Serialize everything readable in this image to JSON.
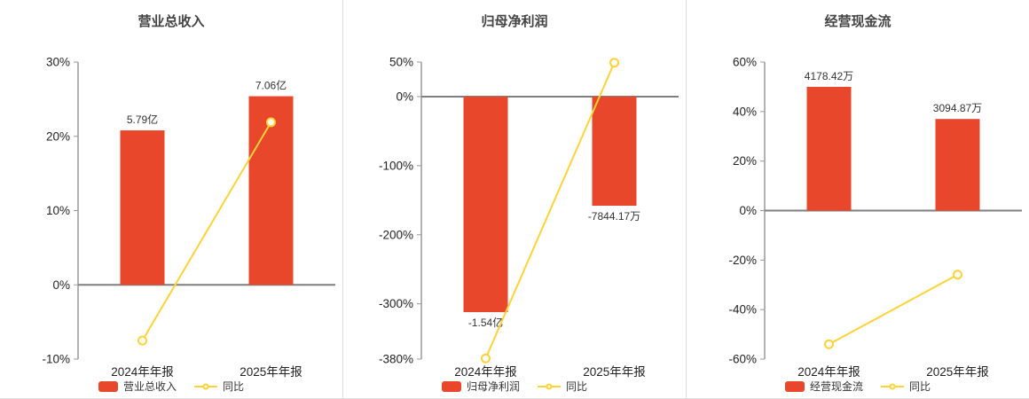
{
  "colors": {
    "bar": "#e8472c",
    "line": "#ffd333",
    "title_text": "#444444",
    "tick_text": "#222222",
    "value_text": "#333333",
    "axis": "#999999",
    "zero_line": "#7f7f7f",
    "divider": "#dddddd",
    "background": "#ffffff"
  },
  "chart_data": [
    {
      "type": "bar+line",
      "title": "营业总收入",
      "categories": [
        "2024年年报",
        "2025年年报"
      ],
      "ylim": [
        -10,
        30
      ],
      "y_ticks": [
        30,
        20,
        10,
        0,
        -10
      ],
      "grid": false,
      "legend_position": "bottom",
      "bar_series": {
        "name": "营业总收入",
        "labels": [
          "5.79亿",
          "7.06亿"
        ],
        "values_pct": [
          20.8,
          25.4
        ]
      },
      "line_series": {
        "name": "同比",
        "values_pct": [
          -7.5,
          21.9
        ]
      }
    },
    {
      "type": "bar+line",
      "title": "归母净利润",
      "categories": [
        "2024年年报",
        "2025年年报"
      ],
      "ylim": [
        -380,
        50
      ],
      "y_ticks": [
        50,
        0,
        -100,
        -200,
        -300,
        -380
      ],
      "grid": false,
      "legend_position": "bottom",
      "bar_series": {
        "name": "归母净利润",
        "labels": [
          "-1.54亿",
          "-7844.17万"
        ],
        "values_pct": [
          -312,
          -158
        ]
      },
      "line_series": {
        "name": "同比",
        "values_pct": [
          -379,
          49.1
        ]
      }
    },
    {
      "type": "bar+line",
      "title": "经营现金流",
      "categories": [
        "2024年年报",
        "2025年年报"
      ],
      "ylim": [
        -60,
        60
      ],
      "y_ticks": [
        60,
        40,
        20,
        0,
        -20,
        -40,
        -60
      ],
      "grid": false,
      "legend_position": "bottom",
      "bar_series": {
        "name": "经营现金流",
        "labels": [
          "4178.42万",
          "3094.87万"
        ],
        "values_pct": [
          50,
          37
        ]
      },
      "line_series": {
        "name": "同比",
        "values_pct": [
          -54,
          -25.9
        ]
      }
    }
  ]
}
